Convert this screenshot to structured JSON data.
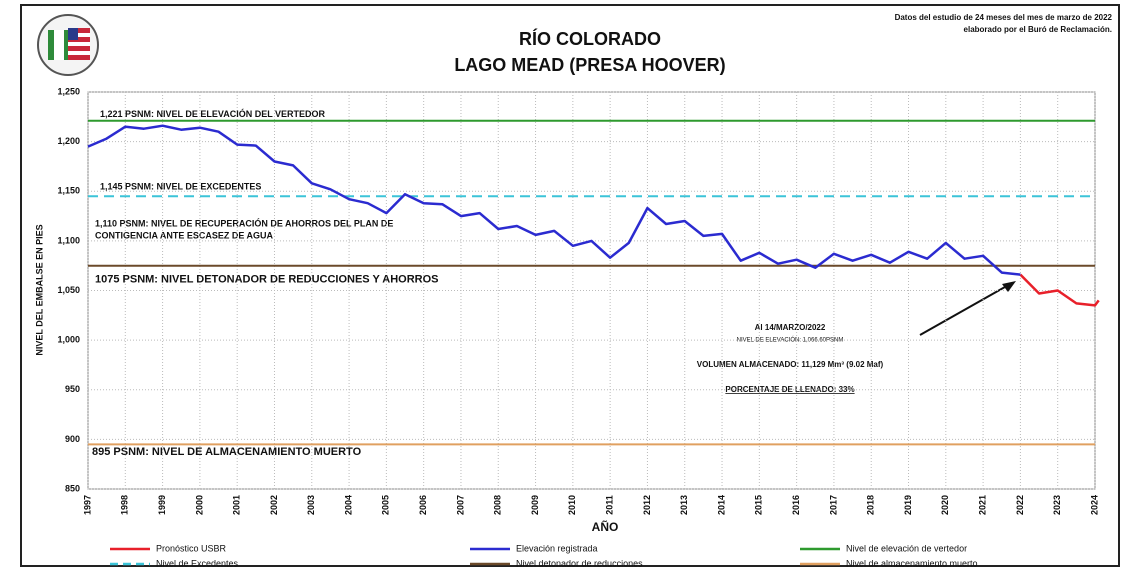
{
  "chart_data": {
    "type": "line",
    "title": "RÍO COLORADO",
    "subtitle": "LAGO MEAD (PRESA HOOVER)",
    "source_note": [
      "Datos del estudio de 24 meses del mes de marzo de 2022",
      "elaborado por el Buró de Reclamación."
    ],
    "x_label": "AÑO",
    "y_label": "NIVEL DEL EMBALSE EN PIES",
    "xlim": [
      1997,
      2024
    ],
    "xticks": [
      1997,
      1998,
      1999,
      2000,
      2001,
      2002,
      2003,
      2004,
      2005,
      2006,
      2007,
      2008,
      2009,
      2010,
      2011,
      2012,
      2013,
      2014,
      2015,
      2016,
      2017,
      2018,
      2019,
      2020,
      2021,
      2022,
      2023,
      2024
    ],
    "ylim": [
      850,
      1250
    ],
    "yticks": [
      {
        "value": 850,
        "label": "850"
      },
      {
        "value": 900,
        "label": "900"
      },
      {
        "value": 950,
        "label": "950"
      },
      {
        "value": 1000,
        "label": "1,000"
      },
      {
        "value": 1050,
        "label": "1,050"
      },
      {
        "value": 1100,
        "label": "1,100"
      },
      {
        "value": 1150,
        "label": "1,150"
      },
      {
        "value": 1200,
        "label": "1,200"
      },
      {
        "value": 1250,
        "label": "1,250"
      }
    ],
    "grid": true,
    "series": [
      {
        "name": "Pronóstico USBR",
        "color": "#e8202a",
        "x": [
          2022.0,
          2022.5,
          2023.0,
          2023.5,
          2024.0,
          2024.1
        ],
        "values": [
          1066,
          1047,
          1050,
          1037,
          1035,
          1040
        ]
      },
      {
        "name": "Elevación registrada",
        "color": "#2b2bd0",
        "x": [
          1997.0,
          1997.5,
          1998.0,
          1998.5,
          1999.0,
          1999.5,
          2000.0,
          2000.5,
          2001.0,
          2001.5,
          2002.0,
          2002.5,
          2003.0,
          2003.5,
          2004.0,
          2004.5,
          2005.0,
          2005.5,
          2006.0,
          2006.5,
          2007.0,
          2007.5,
          2008.0,
          2008.5,
          2009.0,
          2009.5,
          2010.0,
          2010.5,
          2011.0,
          2011.5,
          2012.0,
          2012.5,
          2013.0,
          2013.5,
          2014.0,
          2014.5,
          2015.0,
          2015.5,
          2016.0,
          2016.5,
          2017.0,
          2017.5,
          2018.0,
          2018.5,
          2019.0,
          2019.5,
          2020.0,
          2020.5,
          2021.0,
          2021.5,
          2022.0
        ],
        "values": [
          1195,
          1203,
          1215,
          1213,
          1216,
          1212,
          1214,
          1210,
          1197,
          1196,
          1180,
          1176,
          1158,
          1152,
          1142,
          1138,
          1128,
          1147,
          1138,
          1137,
          1125,
          1128,
          1112,
          1115,
          1106,
          1110,
          1095,
          1100,
          1083,
          1098,
          1133,
          1117,
          1120,
          1105,
          1107,
          1080,
          1088,
          1077,
          1081,
          1073,
          1087,
          1080,
          1086,
          1078,
          1089,
          1082,
          1098,
          1082,
          1085,
          1068,
          1066
        ]
      }
    ],
    "reference_lines": [
      {
        "name": "Nivel de elevación de vertedor",
        "color": "#2e9a2e",
        "value": 1221,
        "dashed": false,
        "label": "1,221 PSNM: NIVEL DE ELEVACIÓN DEL VERTEDOR"
      },
      {
        "name": "Nivel de Excedentes",
        "color": "#3cc4d8",
        "value": 1145,
        "dashed": true,
        "label": "1,145 PSNM: NIVEL DE EXCEDENTES"
      },
      {
        "name": "Nivel detonador de reducciones",
        "color": "#6b4a2a",
        "value": 1075,
        "dashed": false,
        "label": "1075 PSNM: NIVEL DETONADOR DE REDUCCIONES Y AHORROS"
      },
      {
        "name": "Nivel de almacenamiento muerto",
        "color": "#e0a060",
        "value": 895,
        "dashed": false,
        "label": "895 PSNM:  NIVEL DE ALMACENAMIENTO MUERTO"
      }
    ],
    "annotations": [
      "1,110 PSNM: NIVEL DE RECUPERACIÓN DE AHORROS DEL PLAN DE",
      "CONTIGENCIA ANTE ESCASEZ DE AGUA"
    ],
    "callout": [
      "Al 14/MARZO/2022",
      "NIVEL DE ELEVACIÓN: 1,066.60PSNM",
      "VOLUMEN ALMACENADO: 11,129 Mm³ (9.02 Maf)",
      "PORCENTAJE DE LLENADO: 33%"
    ]
  }
}
